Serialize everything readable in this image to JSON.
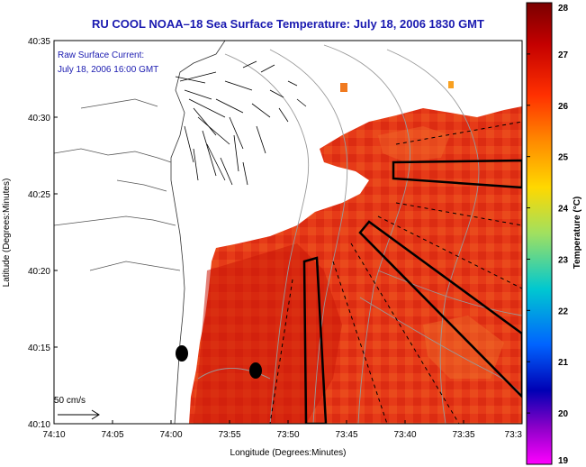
{
  "title": "RU COOL  NOAA–18  Sea Surface Temperature:  July 18, 2006 1830 GMT",
  "annotation": {
    "line1": "Raw Surface Current:",
    "line2": "July 18, 2006 16:00 GMT"
  },
  "scale_bar": {
    "label": "50 cm/s"
  },
  "axes": {
    "xlabel": "Longitude (Degrees:Minutes)",
    "ylabel": "Latitude (Degrees:Minutes)",
    "x_ticks": [
      "74:10",
      "74:05",
      "74:00",
      "73:55",
      "73:50",
      "73:45",
      "73:40",
      "73:35",
      "73:3"
    ],
    "y_ticks": [
      "40:35",
      "40:30",
      "40:25",
      "40:20",
      "40:15",
      "40:10"
    ]
  },
  "colorbar": {
    "label": "Temperature (°C)",
    "min": 19,
    "max": 28,
    "ticks": [
      "28",
      "27",
      "26",
      "25",
      "24",
      "23",
      "22",
      "21",
      "20",
      "19"
    ],
    "colors": [
      "#7a0000",
      "#c80000",
      "#ff3000",
      "#ff8c00",
      "#ffd400",
      "#9ce65a",
      "#00c8c8",
      "#0064ff",
      "#0000b4",
      "#8c00c8",
      "#ff00ff"
    ]
  },
  "map": {
    "region": "New Jersey / Hudson shelf",
    "sst_colors": {
      "warm": "#e83a1a",
      "hot": "#d42010",
      "cool": "#f07a20",
      "land": "#ffffff"
    },
    "current_vectors": "visible near 40:30, 74:00",
    "markers": 2
  }
}
